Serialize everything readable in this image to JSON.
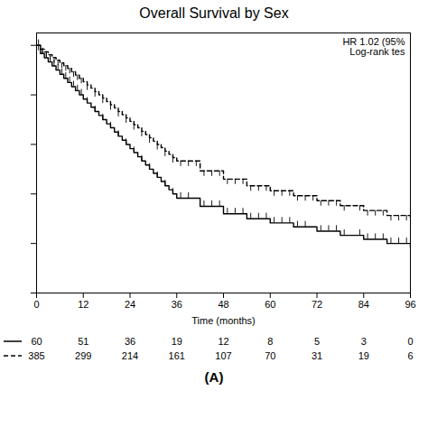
{
  "chart_data": {
    "type": "step",
    "title": "Overall Survival by Sex",
    "xlabel": "Time (months)",
    "annotations": [
      "HR 1.02 (95%",
      "Log-rank tes"
    ],
    "caption": "(A)",
    "xlim": [
      0,
      96
    ],
    "ylim": [
      0,
      1.05
    ],
    "xticks": [
      0,
      12,
      24,
      36,
      48,
      60,
      72,
      84,
      96
    ],
    "yticks": [
      0.0,
      0.2,
      0.4,
      0.6,
      0.8,
      1.0
    ],
    "tick_labels": "x",
    "series": [
      {
        "color": "black",
        "line_style": "solid",
        "marker": "tick_up",
        "x": [
          0,
          1,
          2,
          3,
          4,
          5,
          6,
          7,
          8,
          9,
          10,
          11,
          12,
          13,
          14,
          15,
          16,
          17,
          18,
          19,
          20,
          21,
          22,
          23,
          24,
          25,
          26,
          27,
          28,
          29,
          30,
          31,
          32,
          33,
          34,
          35,
          36,
          42,
          48,
          54,
          60,
          66,
          72,
          78,
          84,
          90,
          96
        ],
        "values": [
          1.0,
          0.967,
          0.95,
          0.933,
          0.917,
          0.9,
          0.883,
          0.867,
          0.85,
          0.833,
          0.817,
          0.8,
          0.783,
          0.767,
          0.75,
          0.733,
          0.717,
          0.7,
          0.683,
          0.667,
          0.65,
          0.633,
          0.617,
          0.6,
          0.583,
          0.567,
          0.55,
          0.533,
          0.517,
          0.5,
          0.483,
          0.467,
          0.45,
          0.433,
          0.417,
          0.4,
          0.383,
          0.35,
          0.32,
          0.3,
          0.283,
          0.267,
          0.25,
          0.233,
          0.217,
          0.2,
          0.183
        ],
        "censor_x": [
          0.5,
          1.5,
          2.5,
          3.5,
          4.5,
          5.5,
          6.5,
          7.5,
          8.5,
          9.5,
          10.5,
          11.5,
          13,
          15,
          17,
          19,
          21,
          23,
          25,
          27,
          29,
          31,
          33,
          35,
          37,
          39,
          43,
          45,
          47,
          49,
          51,
          53,
          55,
          57,
          59,
          61,
          63,
          65,
          67,
          69,
          73,
          75,
          77,
          79,
          83,
          85,
          87,
          89,
          91,
          93,
          95
        ],
        "censor_y": [
          1.0,
          0.967,
          0.95,
          0.933,
          0.917,
          0.9,
          0.883,
          0.867,
          0.85,
          0.833,
          0.817,
          0.8,
          0.767,
          0.733,
          0.7,
          0.667,
          0.633,
          0.6,
          0.567,
          0.533,
          0.5,
          0.467,
          0.433,
          0.4,
          0.383,
          0.383,
          0.35,
          0.35,
          0.35,
          0.32,
          0.32,
          0.32,
          0.3,
          0.3,
          0.3,
          0.283,
          0.283,
          0.283,
          0.267,
          0.267,
          0.25,
          0.25,
          0.25,
          0.233,
          0.233,
          0.217,
          0.217,
          0.217,
          0.2,
          0.2,
          0.2
        ]
      },
      {
        "color": "black",
        "line_style": "dashed",
        "marker": "tick_down",
        "x": [
          0,
          1,
          2,
          3,
          4,
          5,
          6,
          7,
          8,
          9,
          10,
          11,
          12,
          13,
          14,
          15,
          16,
          17,
          18,
          19,
          20,
          21,
          22,
          23,
          24,
          25,
          26,
          27,
          28,
          29,
          30,
          31,
          32,
          33,
          34,
          35,
          36,
          42,
          48,
          54,
          60,
          66,
          72,
          78,
          84,
          90,
          96
        ],
        "values": [
          1.0,
          0.985,
          0.974,
          0.962,
          0.951,
          0.94,
          0.929,
          0.918,
          0.907,
          0.893,
          0.88,
          0.867,
          0.853,
          0.84,
          0.827,
          0.813,
          0.8,
          0.787,
          0.773,
          0.76,
          0.747,
          0.733,
          0.72,
          0.707,
          0.693,
          0.68,
          0.667,
          0.653,
          0.64,
          0.627,
          0.613,
          0.6,
          0.587,
          0.573,
          0.56,
          0.547,
          0.533,
          0.493,
          0.46,
          0.433,
          0.413,
          0.393,
          0.373,
          0.353,
          0.333,
          0.313,
          0.293
        ],
        "censor_x": [
          0.5,
          1.5,
          2.5,
          3.5,
          4.5,
          5.5,
          6.5,
          7.5,
          8.5,
          9.5,
          10.5,
          11.5,
          13,
          15,
          17,
          19,
          21,
          23,
          25,
          27,
          29,
          31,
          33,
          35,
          37,
          39,
          41,
          43,
          45,
          47,
          49,
          51,
          53,
          55,
          57,
          59,
          61,
          63,
          65,
          67,
          69,
          71,
          73,
          75,
          77,
          79,
          83,
          85,
          87,
          89,
          91,
          93,
          95
        ],
        "censor_y": [
          1.0,
          0.985,
          0.974,
          0.962,
          0.951,
          0.94,
          0.929,
          0.918,
          0.907,
          0.893,
          0.88,
          0.867,
          0.84,
          0.813,
          0.787,
          0.76,
          0.733,
          0.707,
          0.68,
          0.653,
          0.627,
          0.6,
          0.573,
          0.547,
          0.533,
          0.533,
          0.533,
          0.493,
          0.493,
          0.493,
          0.46,
          0.46,
          0.46,
          0.433,
          0.433,
          0.433,
          0.413,
          0.413,
          0.413,
          0.393,
          0.393,
          0.393,
          0.373,
          0.373,
          0.373,
          0.353,
          0.353,
          0.333,
          0.333,
          0.333,
          0.313,
          0.313,
          0.313
        ]
      }
    ],
    "at_risk": {
      "x": [
        0,
        12,
        24,
        36,
        48,
        60,
        72,
        84,
        96
      ],
      "rows": [
        [
          60,
          51,
          36,
          19,
          12,
          8,
          5,
          3,
          0
        ],
        [
          385,
          299,
          214,
          161,
          107,
          70,
          31,
          19,
          6
        ]
      ]
    }
  }
}
